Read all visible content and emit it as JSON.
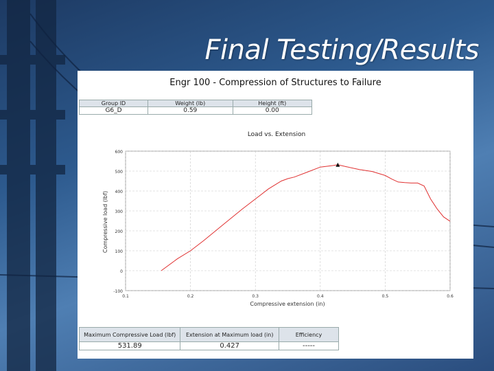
{
  "slide": {
    "title": "Final Testing/Results"
  },
  "panel": {
    "title": "Engr 100 - Compression of Structures to Failure",
    "top_table": {
      "headers": [
        "Group ID",
        "Weight (lb)",
        "Height (ft)"
      ],
      "values": [
        "G6_D",
        "0.59",
        "0.00"
      ]
    },
    "bottom_table": {
      "headers": [
        "Maximum Compressive Load (lbf)",
        "Extension at Maximum load (in)",
        "Efficiency"
      ],
      "values": [
        "531.89",
        "0.427",
        "-----"
      ]
    }
  },
  "colors": {
    "curve": "#e03030",
    "marker": "#111111",
    "grid": "#c8c8c8"
  },
  "chart_data": {
    "type": "line",
    "title": "Load vs. Extension",
    "xlabel": "Compressive extension (in)",
    "ylabel": "Compressive load (lbf)",
    "xlim": [
      0.1,
      0.6
    ],
    "ylim": [
      -100,
      600
    ],
    "x_ticks": [
      "0.1",
      "0.2",
      "0.3",
      "0.4",
      "0.5",
      "0.6"
    ],
    "y_ticks": [
      "-100",
      "0",
      "100",
      "200",
      "300",
      "400",
      "500",
      "600"
    ],
    "grid": true,
    "series": [
      {
        "x": [
          0.155,
          0.18,
          0.2,
          0.22,
          0.25,
          0.28,
          0.3,
          0.32,
          0.34,
          0.35,
          0.36,
          0.38,
          0.4,
          0.42,
          0.427,
          0.44,
          0.46,
          0.48,
          0.49,
          0.5,
          0.51,
          0.52,
          0.53,
          0.54,
          0.55,
          0.56,
          0.57,
          0.58,
          0.59,
          0.6
        ],
        "y": [
          0,
          60,
          100,
          150,
          230,
          310,
          360,
          410,
          450,
          462,
          470,
          495,
          520,
          528,
          531.89,
          522,
          508,
          498,
          488,
          478,
          460,
          445,
          442,
          440,
          440,
          425,
          360,
          310,
          270,
          248
        ]
      }
    ],
    "annotations": [
      {
        "text": "max load marker",
        "x": 0.427,
        "y": 531.89
      }
    ]
  }
}
